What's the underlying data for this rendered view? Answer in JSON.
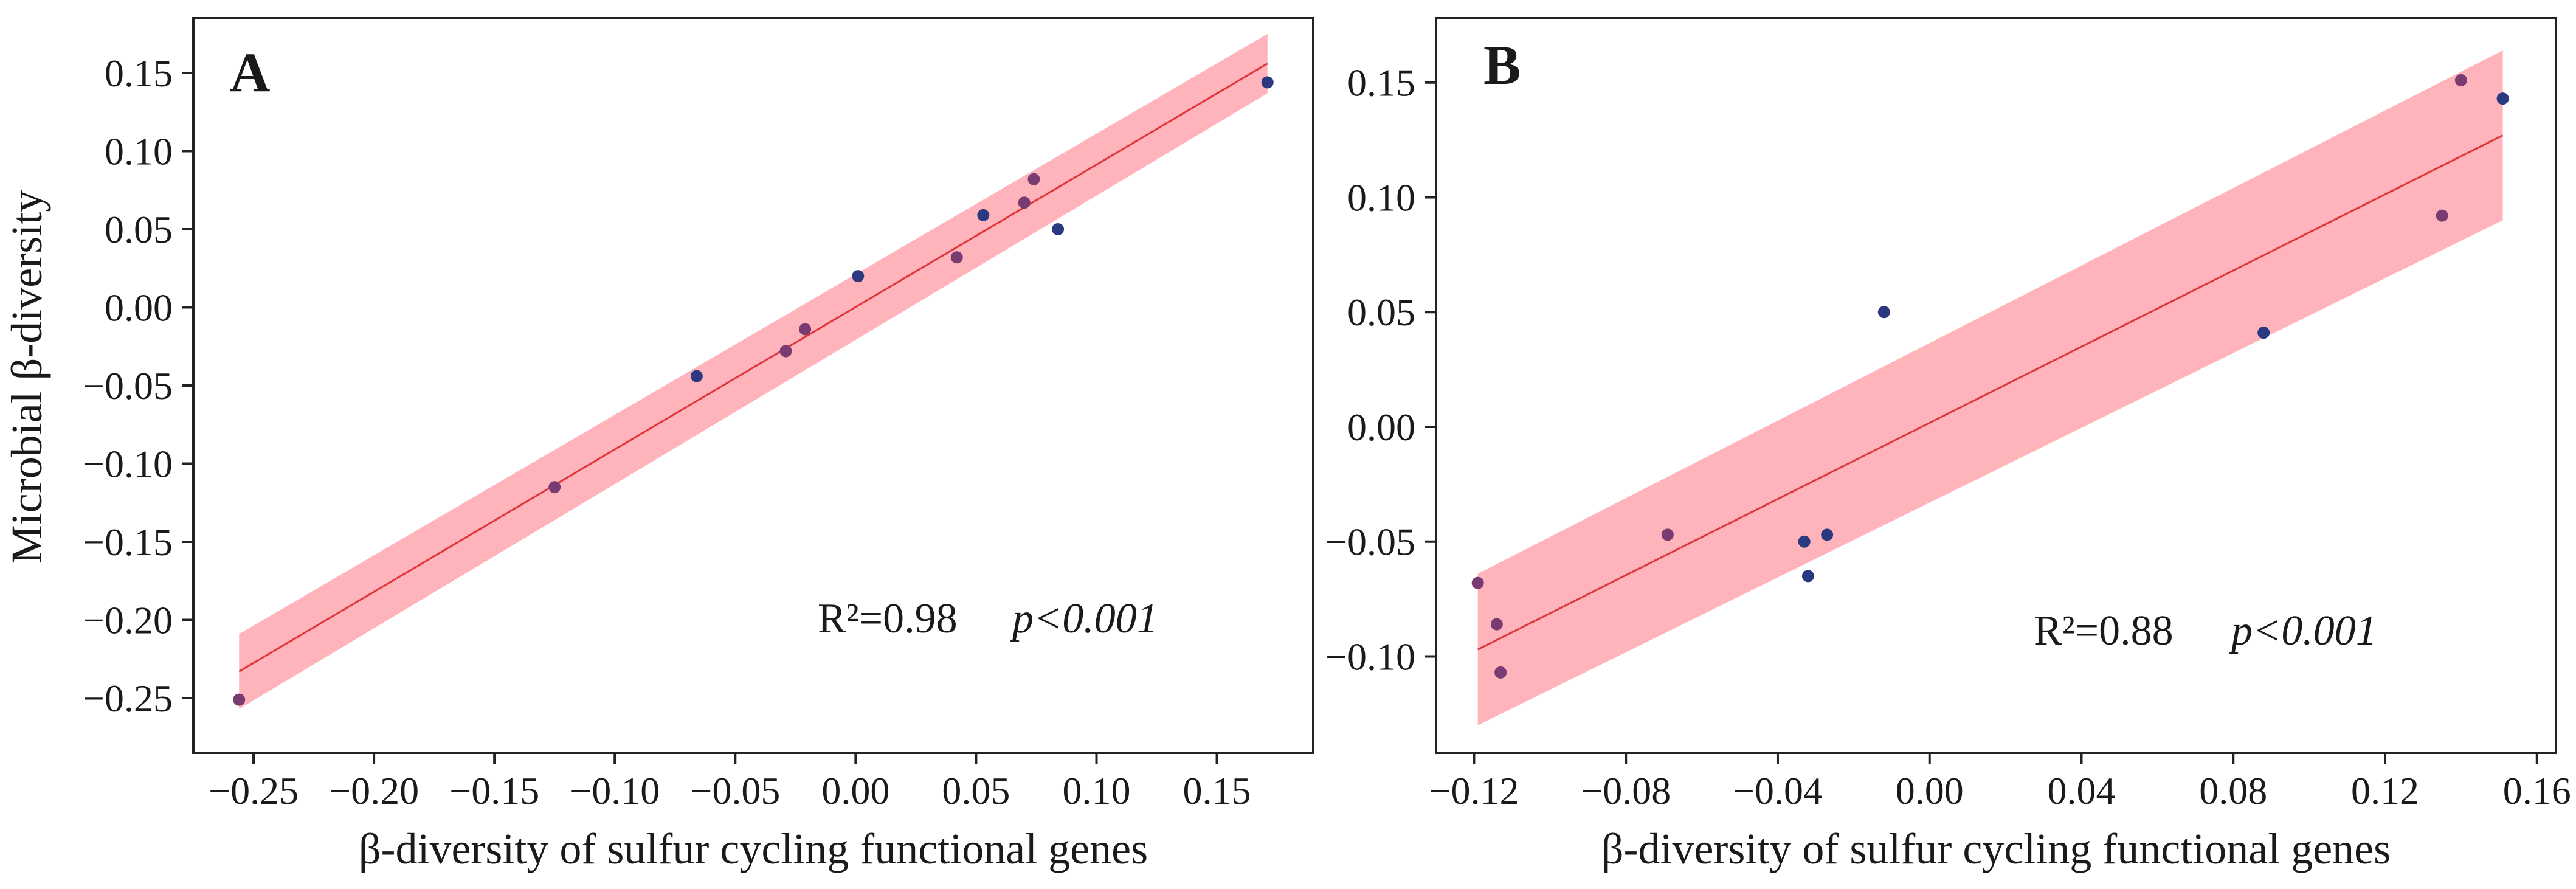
{
  "y_axis_title": "Microbial β-diversity",
  "chart_data": [
    {
      "type": "scatter",
      "panel": "A",
      "xlabel": "β-diversity of sulfur cycling functional genes",
      "ylabel": "Microbial β-diversity",
      "xlim": [
        -0.275,
        0.19
      ],
      "ylim": [
        -0.285,
        0.185
      ],
      "x_ticks": [
        -0.25,
        -0.2,
        -0.15,
        -0.1,
        -0.05,
        0.0,
        0.05,
        0.1,
        0.15
      ],
      "x_tick_labels": [
        "−0.25",
        "−0.20",
        "−0.15",
        "−0.10",
        "−0.05",
        "0.00",
        "0.05",
        "0.10",
        "0.15"
      ],
      "y_ticks": [
        -0.25,
        -0.2,
        -0.15,
        -0.1,
        -0.05,
        0.0,
        0.05,
        0.1,
        0.15
      ],
      "y_tick_labels": [
        "−0.25",
        "−0.20",
        "−0.15",
        "−0.10",
        "−0.05",
        "0.00",
        "0.05",
        "0.10",
        "0.15"
      ],
      "points": [
        {
          "x": -0.256,
          "y": -0.251,
          "in_band": true
        },
        {
          "x": -0.125,
          "y": -0.115,
          "in_band": true
        },
        {
          "x": -0.066,
          "y": -0.044,
          "in_band": false
        },
        {
          "x": -0.029,
          "y": -0.028,
          "in_band": true
        },
        {
          "x": -0.021,
          "y": -0.014,
          "in_band": true
        },
        {
          "x": 0.001,
          "y": 0.02,
          "in_band": false
        },
        {
          "x": 0.042,
          "y": 0.032,
          "in_band": true
        },
        {
          "x": 0.053,
          "y": 0.059,
          "in_band": false
        },
        {
          "x": 0.07,
          "y": 0.067,
          "in_band": true
        },
        {
          "x": 0.074,
          "y": 0.082,
          "in_band": true
        },
        {
          "x": 0.084,
          "y": 0.05,
          "in_band": false
        },
        {
          "x": 0.171,
          "y": 0.144,
          "in_band": false
        }
      ],
      "fit": {
        "x0": -0.256,
        "x1": 0.171,
        "y0": -0.233,
        "y1": 0.156
      },
      "ci_band": {
        "upper": [
          -0.209,
          0.175
        ],
        "lower": [
          -0.257,
          0.137
        ]
      },
      "r2_label": "R²=0.98",
      "p_label": "p<0.001"
    },
    {
      "type": "scatter",
      "panel": "B",
      "xlabel": "β-diversity of sulfur cycling functional genes",
      "ylabel": "",
      "xlim": [
        -0.13,
        0.165
      ],
      "ylim": [
        -0.142,
        0.178
      ],
      "x_ticks": [
        -0.12,
        -0.08,
        -0.04,
        0.0,
        0.04,
        0.08,
        0.12,
        0.16
      ],
      "x_tick_labels": [
        "−0.12",
        "−0.08",
        "−0.04",
        "0.00",
        "0.04",
        "0.08",
        "0.12",
        "0.16"
      ],
      "y_ticks": [
        -0.1,
        -0.05,
        0.0,
        0.05,
        0.1,
        0.15
      ],
      "y_tick_labels": [
        "−0.10",
        "−0.05",
        "0.00",
        "0.05",
        "0.10",
        "0.15"
      ],
      "points": [
        {
          "x": -0.119,
          "y": -0.068,
          "in_band": true
        },
        {
          "x": -0.114,
          "y": -0.086,
          "in_band": true
        },
        {
          "x": -0.113,
          "y": -0.107,
          "in_band": true
        },
        {
          "x": -0.069,
          "y": -0.047,
          "in_band": true
        },
        {
          "x": -0.033,
          "y": -0.05,
          "in_band": false
        },
        {
          "x": -0.032,
          "y": -0.065,
          "in_band": false
        },
        {
          "x": -0.027,
          "y": -0.047,
          "in_band": false
        },
        {
          "x": -0.012,
          "y": 0.05,
          "in_band": false
        },
        {
          "x": 0.088,
          "y": 0.041,
          "in_band": false
        },
        {
          "x": 0.135,
          "y": 0.092,
          "in_band": true
        },
        {
          "x": 0.14,
          "y": 0.151,
          "in_band": true
        },
        {
          "x": 0.151,
          "y": 0.143,
          "in_band": false
        }
      ],
      "fit": {
        "x0": -0.119,
        "x1": 0.151,
        "y0": -0.097,
        "y1": 0.127
      },
      "ci_band": {
        "upper": [
          -0.064,
          0.164
        ],
        "lower": [
          -0.13,
          0.09
        ]
      },
      "r2_label": "R²=0.88",
      "p_label": "p<0.001"
    }
  ]
}
